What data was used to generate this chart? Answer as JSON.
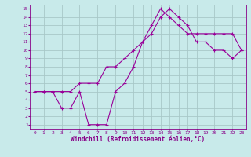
{
  "xlabel": "Windchill (Refroidissement éolien,°C)",
  "ylabel": "",
  "bg_color": "#c8eaea",
  "grid_color": "#a8c8c8",
  "line_color": "#990099",
  "xlim": [
    -0.5,
    23.5
  ],
  "ylim": [
    0.5,
    15.5
  ],
  "xticks": [
    0,
    1,
    2,
    3,
    4,
    5,
    6,
    7,
    8,
    9,
    10,
    11,
    12,
    13,
    14,
    15,
    16,
    17,
    18,
    19,
    20,
    21,
    22,
    23
  ],
  "yticks": [
    1,
    2,
    3,
    4,
    5,
    6,
    7,
    8,
    9,
    10,
    11,
    12,
    13,
    14,
    15
  ],
  "line1_x": [
    0,
    1,
    2,
    3,
    4,
    5,
    6,
    7,
    8,
    9,
    10,
    11,
    12,
    13,
    14,
    15,
    16,
    17,
    18,
    19,
    20,
    21,
    22,
    23
  ],
  "line1_y": [
    5,
    5,
    5,
    3,
    3,
    5,
    1,
    1,
    1,
    5,
    6,
    8,
    11,
    13,
    15,
    14,
    13,
    12,
    12,
    12,
    12,
    12,
    12,
    10
  ],
  "line2_x": [
    0,
    1,
    2,
    3,
    4,
    5,
    6,
    7,
    8,
    9,
    10,
    11,
    12,
    13,
    14,
    15,
    16,
    17,
    18,
    19,
    20,
    21,
    22,
    23
  ],
  "line2_y": [
    5,
    5,
    5,
    5,
    5,
    6,
    6,
    6,
    8,
    8,
    9,
    10,
    11,
    12,
    14,
    15,
    14,
    13,
    11,
    11,
    10,
    10,
    9,
    10
  ],
  "tick_fontsize": 4.5,
  "xlabel_fontsize": 5.5,
  "tick_color": "#880088",
  "label_color": "#880088"
}
